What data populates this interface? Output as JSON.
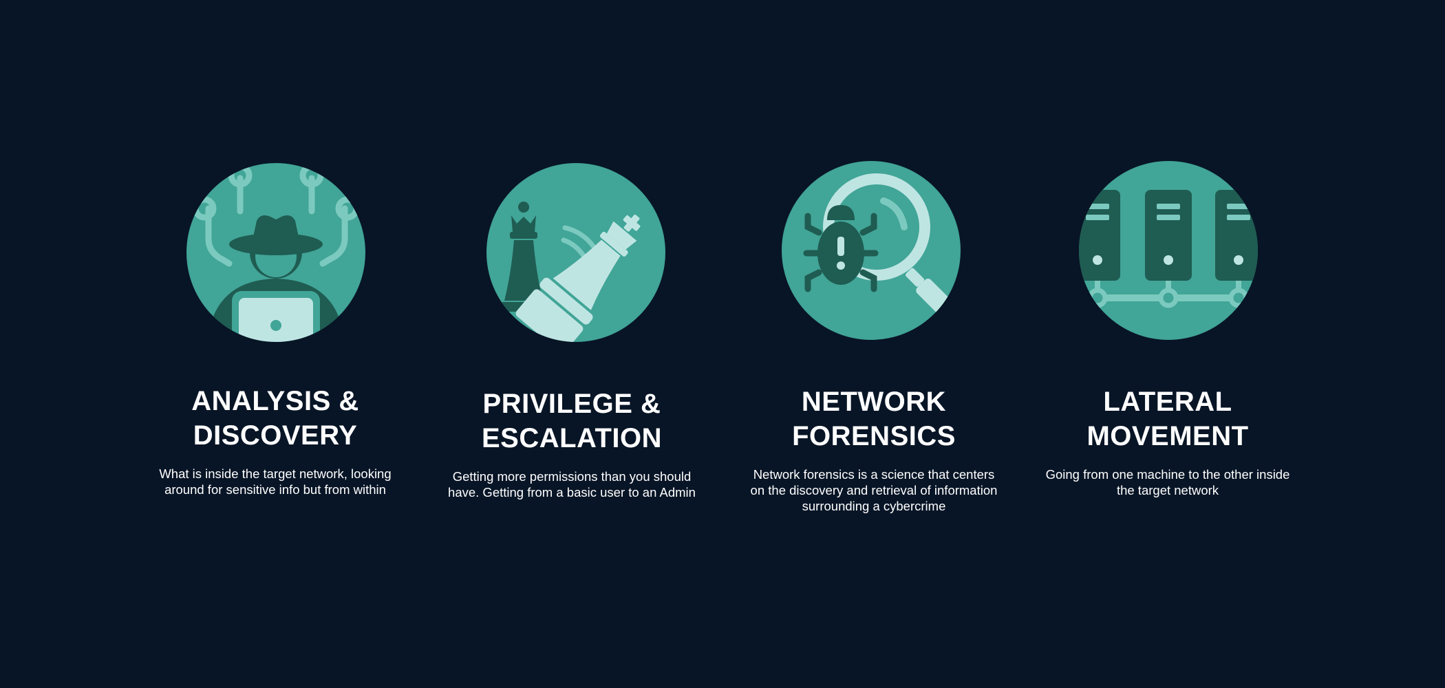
{
  "colors": {
    "background": "#081526",
    "circle": "#41a597",
    "icon_dark": "#1f5c52",
    "icon_light": "#bfe5e3",
    "icon_mid": "#7ccabf"
  },
  "cards": [
    {
      "icon": "hacker-laptop-icon",
      "title_lines": [
        "ANALYSIS &",
        "DISCOVERY"
      ],
      "desc_lines": [
        "What is inside the target network, looking",
        "around for sensitive info but from within"
      ]
    },
    {
      "icon": "chess-pieces-icon",
      "title_lines": [
        "PRIVILEGE &",
        "ESCALATION"
      ],
      "desc_lines": [
        "Getting more permissions than you should",
        "have. Getting from a basic user to an Admin"
      ]
    },
    {
      "icon": "bug-magnifier-icon",
      "title_lines": [
        "NETWORK",
        "FORENSICS"
      ],
      "desc_lines": [
        "Network forensics is a science that centers",
        "on the discovery and retrieval of information",
        "surrounding a cybercrime"
      ]
    },
    {
      "icon": "server-network-icon",
      "title_lines": [
        "LATERAL",
        "MOVEMENT"
      ],
      "desc_lines": [
        "Going from one machine to the other inside",
        "the target network"
      ]
    }
  ]
}
